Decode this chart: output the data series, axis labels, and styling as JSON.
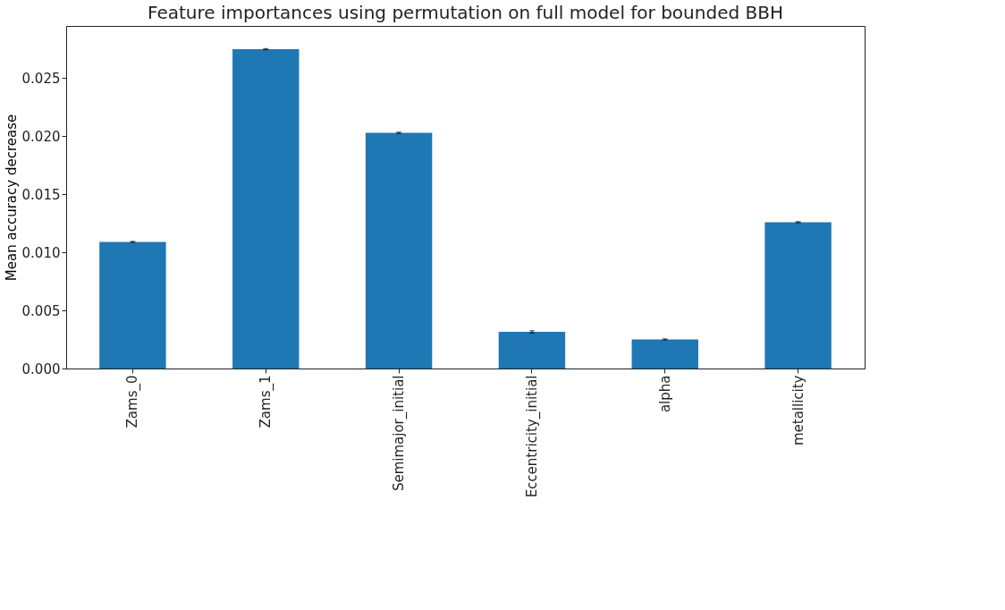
{
  "chart_data": {
    "type": "bar",
    "title": "Feature importances using permutation on full model for bounded BBH",
    "ylabel": "Mean accuracy decrease",
    "categories": [
      "Zams_0",
      "Zams_1",
      "Semimajor_initial",
      "Eccentricity_initial",
      "alpha",
      "metallicity"
    ],
    "values": [
      0.0109,
      0.0275,
      0.0203,
      0.00315,
      0.0025,
      0.0126
    ],
    "errors": [
      5e-05,
      5e-05,
      5e-05,
      0.0001,
      5e-05,
      5e-05
    ],
    "color": "#1f77b4",
    "ylim": [
      0,
      0.0295
    ],
    "yticks": [
      {
        "value": 0,
        "label": "0.000"
      },
      {
        "value": 0.005,
        "label": "0.005"
      },
      {
        "value": 0.01,
        "label": "0.010"
      },
      {
        "value": 0.015,
        "label": "0.015"
      },
      {
        "value": 0.02,
        "label": "0.020"
      },
      {
        "value": 0.025,
        "label": "0.025"
      }
    ],
    "grid": false
  }
}
